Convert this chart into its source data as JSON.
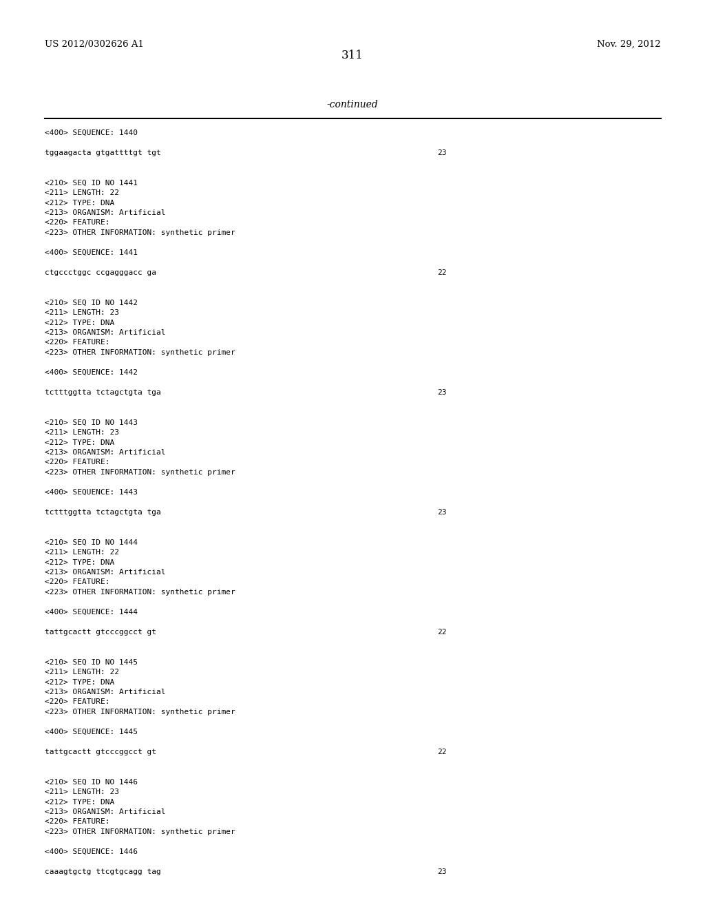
{
  "bg_color": "#ffffff",
  "top_left_text": "US 2012/0302626 A1",
  "top_right_text": "Nov. 29, 2012",
  "page_number": "311",
  "continued_text": "-continued",
  "header_fontsize": 9.5,
  "page_num_fontsize": 12,
  "continued_fontsize": 10,
  "mono_fontsize": 8.0,
  "lines": [
    {
      "text": "<400> SEQUENCE: 1440",
      "type": "mono",
      "num": null
    },
    {
      "text": "",
      "type": "blank"
    },
    {
      "text": "tggaagacta gtgattttgt tgt",
      "type": "seq",
      "num": "23"
    },
    {
      "text": "",
      "type": "blank"
    },
    {
      "text": "",
      "type": "blank"
    },
    {
      "text": "<210> SEQ ID NO 1441",
      "type": "mono",
      "num": null
    },
    {
      "text": "<211> LENGTH: 22",
      "type": "mono",
      "num": null
    },
    {
      "text": "<212> TYPE: DNA",
      "type": "mono",
      "num": null
    },
    {
      "text": "<213> ORGANISM: Artificial",
      "type": "mono",
      "num": null
    },
    {
      "text": "<220> FEATURE:",
      "type": "mono",
      "num": null
    },
    {
      "text": "<223> OTHER INFORMATION: synthetic primer",
      "type": "mono",
      "num": null
    },
    {
      "text": "",
      "type": "blank"
    },
    {
      "text": "<400> SEQUENCE: 1441",
      "type": "mono",
      "num": null
    },
    {
      "text": "",
      "type": "blank"
    },
    {
      "text": "ctgccctggc ccgagggacc ga",
      "type": "seq",
      "num": "22"
    },
    {
      "text": "",
      "type": "blank"
    },
    {
      "text": "",
      "type": "blank"
    },
    {
      "text": "<210> SEQ ID NO 1442",
      "type": "mono",
      "num": null
    },
    {
      "text": "<211> LENGTH: 23",
      "type": "mono",
      "num": null
    },
    {
      "text": "<212> TYPE: DNA",
      "type": "mono",
      "num": null
    },
    {
      "text": "<213> ORGANISM: Artificial",
      "type": "mono",
      "num": null
    },
    {
      "text": "<220> FEATURE:",
      "type": "mono",
      "num": null
    },
    {
      "text": "<223> OTHER INFORMATION: synthetic primer",
      "type": "mono",
      "num": null
    },
    {
      "text": "",
      "type": "blank"
    },
    {
      "text": "<400> SEQUENCE: 1442",
      "type": "mono",
      "num": null
    },
    {
      "text": "",
      "type": "blank"
    },
    {
      "text": "tctttggtta tctagctgta tga",
      "type": "seq",
      "num": "23"
    },
    {
      "text": "",
      "type": "blank"
    },
    {
      "text": "",
      "type": "blank"
    },
    {
      "text": "<210> SEQ ID NO 1443",
      "type": "mono",
      "num": null
    },
    {
      "text": "<211> LENGTH: 23",
      "type": "mono",
      "num": null
    },
    {
      "text": "<212> TYPE: DNA",
      "type": "mono",
      "num": null
    },
    {
      "text": "<213> ORGANISM: Artificial",
      "type": "mono",
      "num": null
    },
    {
      "text": "<220> FEATURE:",
      "type": "mono",
      "num": null
    },
    {
      "text": "<223> OTHER INFORMATION: synthetic primer",
      "type": "mono",
      "num": null
    },
    {
      "text": "",
      "type": "blank"
    },
    {
      "text": "<400> SEQUENCE: 1443",
      "type": "mono",
      "num": null
    },
    {
      "text": "",
      "type": "blank"
    },
    {
      "text": "tctttggtta tctagctgta tga",
      "type": "seq",
      "num": "23"
    },
    {
      "text": "",
      "type": "blank"
    },
    {
      "text": "",
      "type": "blank"
    },
    {
      "text": "<210> SEQ ID NO 1444",
      "type": "mono",
      "num": null
    },
    {
      "text": "<211> LENGTH: 22",
      "type": "mono",
      "num": null
    },
    {
      "text": "<212> TYPE: DNA",
      "type": "mono",
      "num": null
    },
    {
      "text": "<213> ORGANISM: Artificial",
      "type": "mono",
      "num": null
    },
    {
      "text": "<220> FEATURE:",
      "type": "mono",
      "num": null
    },
    {
      "text": "<223> OTHER INFORMATION: synthetic primer",
      "type": "mono",
      "num": null
    },
    {
      "text": "",
      "type": "blank"
    },
    {
      "text": "<400> SEQUENCE: 1444",
      "type": "mono",
      "num": null
    },
    {
      "text": "",
      "type": "blank"
    },
    {
      "text": "tattgcactt gtcccggcct gt",
      "type": "seq",
      "num": "22"
    },
    {
      "text": "",
      "type": "blank"
    },
    {
      "text": "",
      "type": "blank"
    },
    {
      "text": "<210> SEQ ID NO 1445",
      "type": "mono",
      "num": null
    },
    {
      "text": "<211> LENGTH: 22",
      "type": "mono",
      "num": null
    },
    {
      "text": "<212> TYPE: DNA",
      "type": "mono",
      "num": null
    },
    {
      "text": "<213> ORGANISM: Artificial",
      "type": "mono",
      "num": null
    },
    {
      "text": "<220> FEATURE:",
      "type": "mono",
      "num": null
    },
    {
      "text": "<223> OTHER INFORMATION: synthetic primer",
      "type": "mono",
      "num": null
    },
    {
      "text": "",
      "type": "blank"
    },
    {
      "text": "<400> SEQUENCE: 1445",
      "type": "mono",
      "num": null
    },
    {
      "text": "",
      "type": "blank"
    },
    {
      "text": "tattgcactt gtcccggcct gt",
      "type": "seq",
      "num": "22"
    },
    {
      "text": "",
      "type": "blank"
    },
    {
      "text": "",
      "type": "blank"
    },
    {
      "text": "<210> SEQ ID NO 1446",
      "type": "mono",
      "num": null
    },
    {
      "text": "<211> LENGTH: 23",
      "type": "mono",
      "num": null
    },
    {
      "text": "<212> TYPE: DNA",
      "type": "mono",
      "num": null
    },
    {
      "text": "<213> ORGANISM: Artificial",
      "type": "mono",
      "num": null
    },
    {
      "text": "<220> FEATURE:",
      "type": "mono",
      "num": null
    },
    {
      "text": "<223> OTHER INFORMATION: synthetic primer",
      "type": "mono",
      "num": null
    },
    {
      "text": "",
      "type": "blank"
    },
    {
      "text": "<400> SEQUENCE: 1446",
      "type": "mono",
      "num": null
    },
    {
      "text": "",
      "type": "blank"
    },
    {
      "text": "caaagtgctg ttcgtgcagg tag",
      "type": "seq",
      "num": "23"
    }
  ]
}
